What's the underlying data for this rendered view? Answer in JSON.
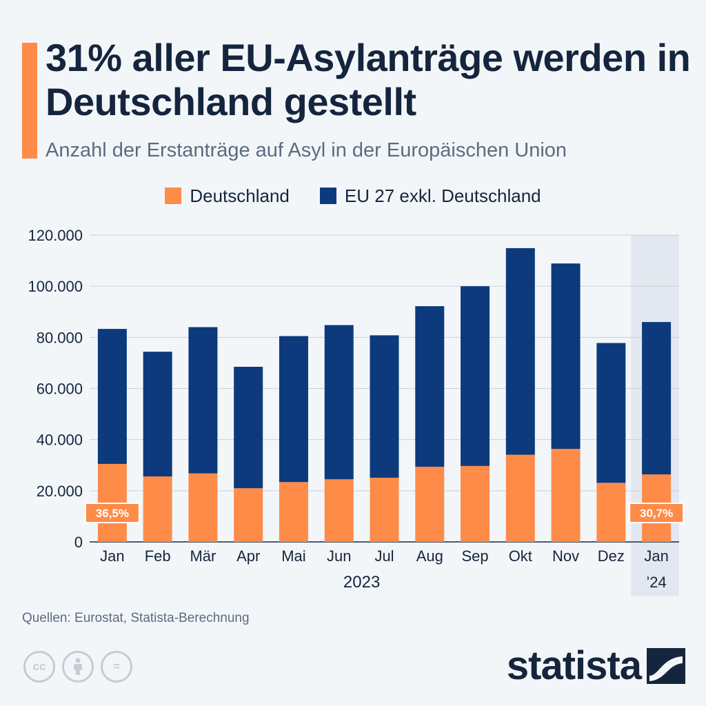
{
  "header": {
    "title": "31% aller EU-Asylanträge werden in Deutschland gestellt",
    "subtitle": "Anzahl der Erstanträge auf Asyl in der Europäischen Union"
  },
  "colors": {
    "germany": "#ff8b49",
    "eu": "#0c3a7d",
    "accent": "#ff8b49",
    "highlight": "#e3e8f0",
    "grid": "#c8cfd8",
    "text": "#15253d"
  },
  "chart_data": {
    "type": "bar",
    "stacked": true,
    "title": "31% aller EU-Asylanträge werden in Deutschland gestellt",
    "subtitle": "Anzahl der Erstanträge auf Asyl in der Europäischen Union",
    "categories": [
      "Jan",
      "Feb",
      "Mär",
      "Apr",
      "Mai",
      "Jun",
      "Jul",
      "Aug",
      "Sep",
      "Okt",
      "Nov",
      "Dez",
      "Jan"
    ],
    "category_sublabels": [
      "",
      "",
      "",
      "",
      "",
      "",
      "",
      "",
      "",
      "",
      "",
      "",
      "’24"
    ],
    "group_label": "2023",
    "series": [
      {
        "name": "Deutschland",
        "values": [
          30500,
          25600,
          26800,
          21000,
          23400,
          24500,
          25100,
          29400,
          29700,
          34100,
          36400,
          23100,
          26400
        ]
      },
      {
        "name": "EU 27 exkl. Deutschland",
        "values": [
          52800,
          48800,
          57200,
          47500,
          57100,
          60300,
          55700,
          62800,
          70300,
          80800,
          72500,
          54700,
          59600
        ]
      }
    ],
    "yticks": [
      0,
      20000,
      40000,
      60000,
      80000,
      100000,
      120000
    ],
    "ytick_labels": [
      "0",
      "20.000",
      "40.000",
      "60.000",
      "80.000",
      "100.000",
      "120.000"
    ],
    "ylim": [
      0,
      120000
    ],
    "annotations": [
      {
        "category_index": 0,
        "text": "36,5%"
      },
      {
        "category_index": 12,
        "text": "30,7%"
      }
    ],
    "highlight_category_index": 12,
    "legend_position": "top-center",
    "grid": true
  },
  "footer": {
    "source": "Quellen: Eurostat, Statista-Berechnung",
    "brand": "statista",
    "license_icons": [
      "cc-icon",
      "attribution-icon",
      "no-derivatives-icon"
    ],
    "license_labels": [
      "cc",
      "="
    ]
  }
}
